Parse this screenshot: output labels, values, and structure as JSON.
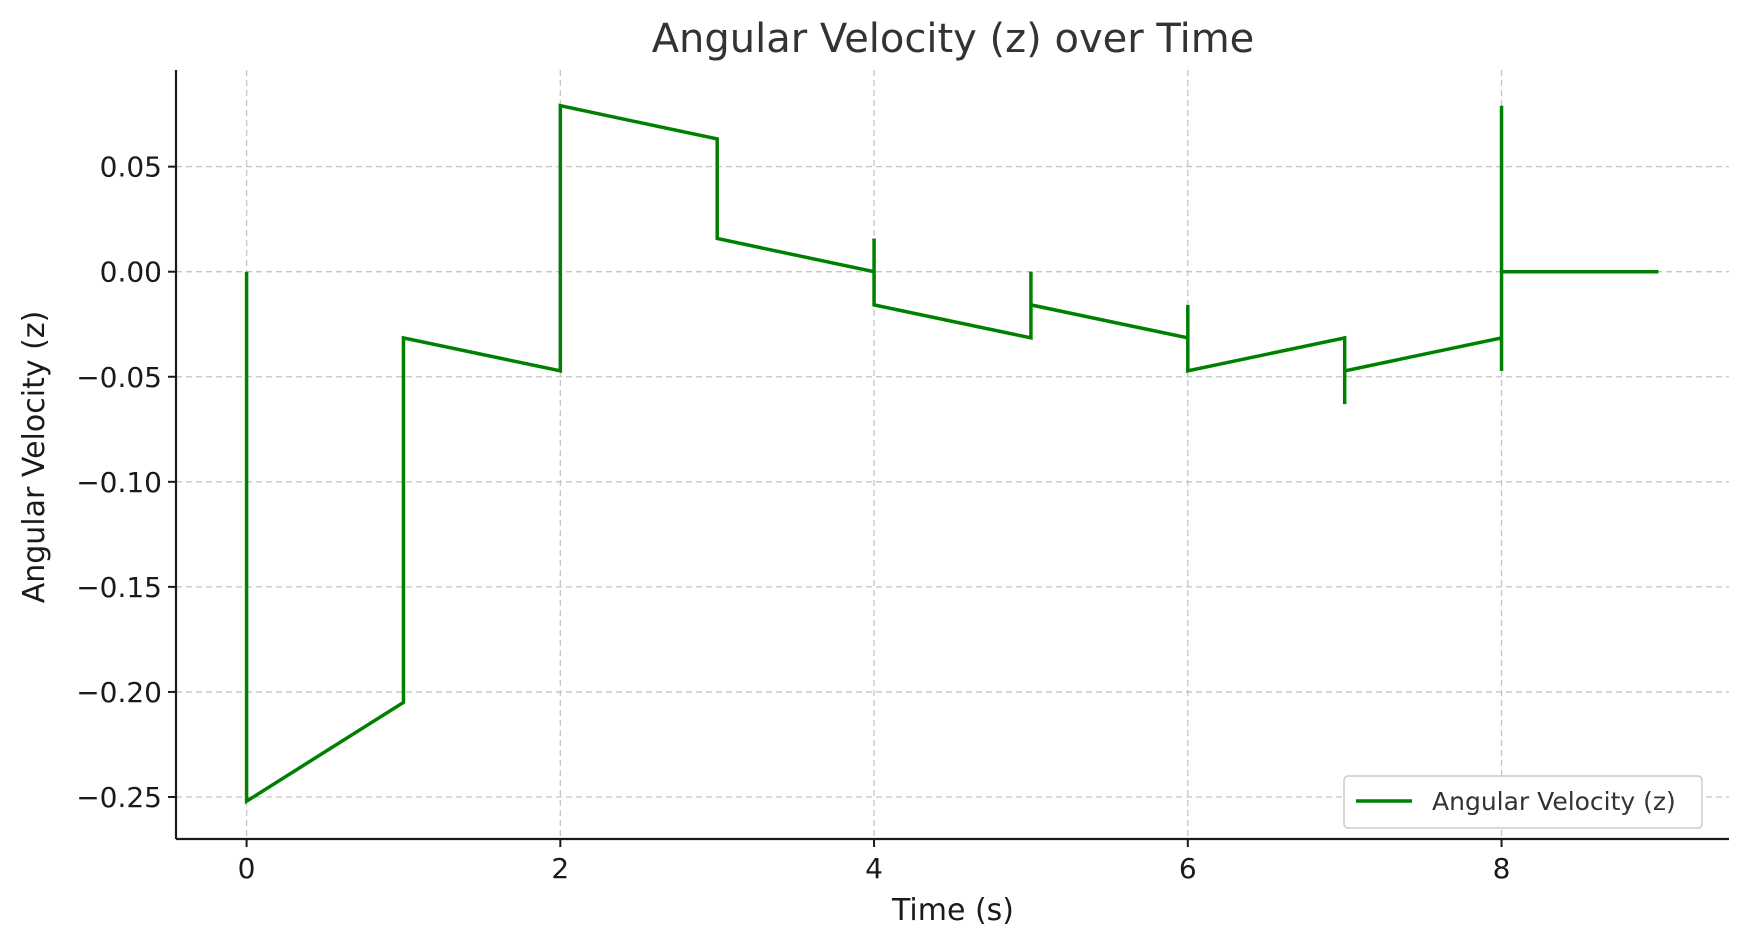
{
  "chart_data": {
    "type": "line",
    "title": "Angular Velocity (z) over Time",
    "xlabel": "Time (s)",
    "ylabel": "Angular Velocity (z)",
    "xlim": [
      -0.45,
      9.45
    ],
    "ylim": [
      -0.27,
      0.096
    ],
    "xticks": [
      0,
      2,
      4,
      6,
      8
    ],
    "xtick_labels": [
      "0",
      "2",
      "4",
      "6",
      "8"
    ],
    "yticks": [
      0.05,
      0.0,
      -0.05,
      -0.1,
      -0.15,
      -0.2,
      -0.25
    ],
    "ytick_labels": [
      "0.05",
      "0.00",
      "−0.05",
      "−0.10",
      "−0.15",
      "−0.20",
      "−0.25"
    ],
    "grid": true,
    "legend_position": "bottom-right",
    "series": [
      {
        "name": "Angular Velocity (z)",
        "color": "#008000",
        "x": [
          0,
          0,
          1,
          1,
          2,
          2,
          3,
          3,
          4,
          4,
          4,
          5,
          5,
          5,
          6,
          6,
          6,
          7,
          7,
          7,
          8,
          8,
          8,
          8,
          9
        ],
        "y": [
          0.0,
          -0.252,
          -0.205,
          -0.0315,
          -0.0472,
          0.079,
          0.0632,
          0.0158,
          0.0,
          0.0158,
          -0.0158,
          -0.0315,
          0.0,
          -0.0158,
          -0.0315,
          -0.0158,
          -0.0472,
          -0.0315,
          -0.063,
          -0.0472,
          -0.0315,
          -0.0472,
          0.079,
          0.0,
          0.0
        ]
      }
    ]
  }
}
